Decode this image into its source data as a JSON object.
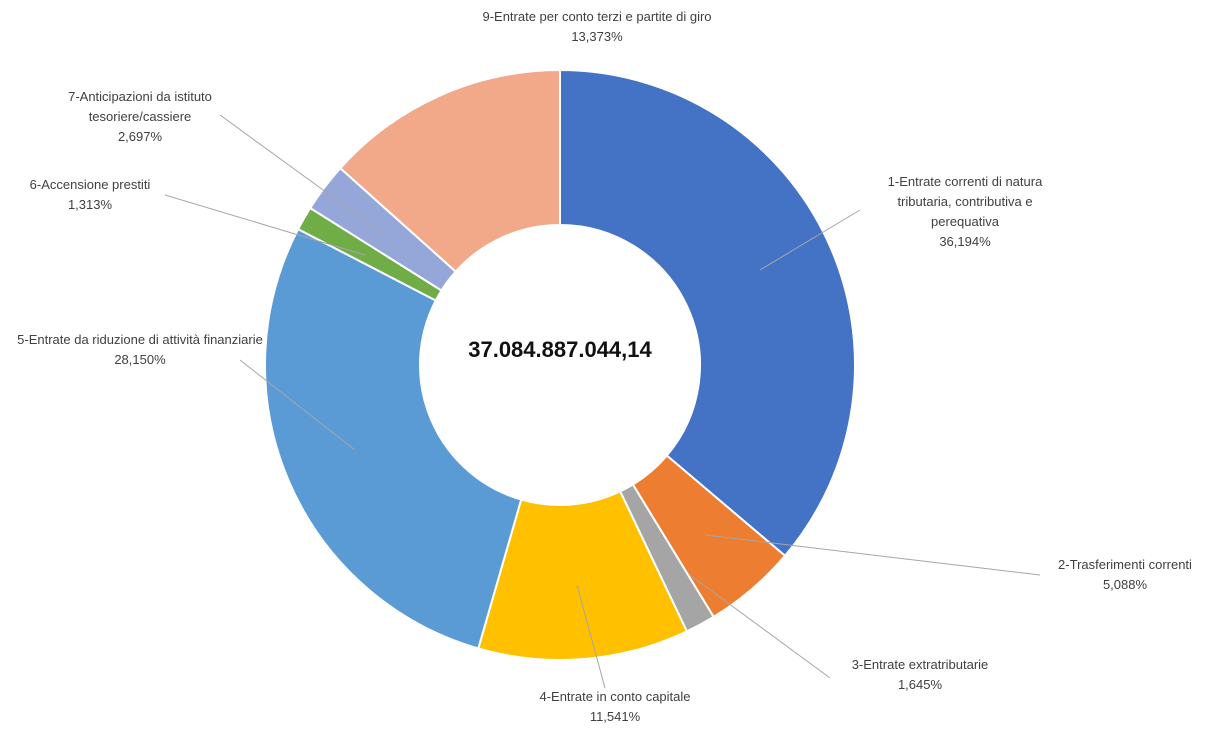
{
  "chart_data": {
    "type": "donut",
    "center_text": "37.084.887.044,14",
    "categories": [
      "1-Entrate correnti di natura tributaria, contributiva e perequativa",
      "2-Trasferimenti correnti",
      "3-Entrate extratributarie",
      "4-Entrate in conto capitale",
      "5-Entrate da riduzione di attività finanziarie",
      "6-Accensione prestiti",
      "7-Anticipazioni da istituto tesoriere/cassiere",
      "9-Entrate per conto terzi e partite di giro"
    ],
    "values": [
      36.194,
      5.088,
      1.645,
      11.541,
      28.15,
      1.313,
      2.697,
      13.373
    ],
    "value_labels": [
      "36,194%",
      "5,088%",
      "1,645%",
      "11,541%",
      "28,150%",
      "1,313%",
      "2,697%",
      "13,373%"
    ],
    "colors": [
      "#4472c4",
      "#ed7d31",
      "#a5a5a5",
      "#ffc000",
      "#5b9bd5",
      "#70ad47",
      "#95a7d8",
      "#f1a98a"
    ]
  }
}
